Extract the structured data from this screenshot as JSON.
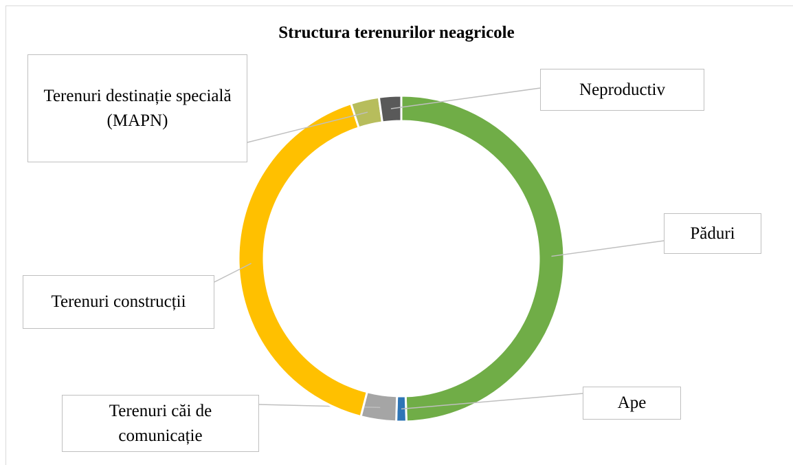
{
  "chart_data": {
    "type": "donut",
    "title": "Structura terenurilor neagricole",
    "categories": [
      "Păduri",
      "Ape",
      "Terenuri căi de comunicație",
      "Terenuri construcții",
      "Terenuri destinație specială (MAPN)",
      "Neproductiv"
    ],
    "values": [
      49.5,
      1,
      3.5,
      41,
      2.8,
      2.2
    ],
    "colors": [
      "#70ad47",
      "#2e75b6",
      "#a5a5a5",
      "#ffc000",
      "#b7bd5c",
      "#595959"
    ]
  }
}
